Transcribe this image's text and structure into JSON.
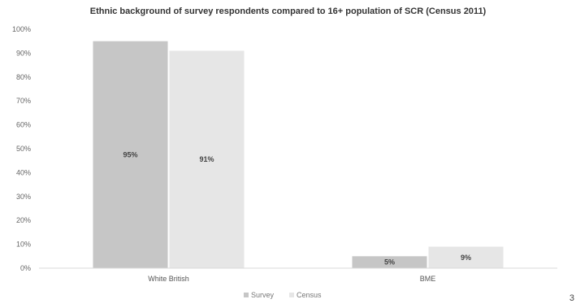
{
  "chart_data": {
    "type": "bar",
    "title": "Ethnic background of survey respondents compared to 16+ population of SCR (Census 2011)",
    "categories": [
      "White British",
      "BME"
    ],
    "series": [
      {
        "name": "Survey",
        "values": [
          95,
          5
        ],
        "labels": [
          "95%",
          "5%"
        ],
        "color": "#c6c6c6"
      },
      {
        "name": "Census",
        "values": [
          91,
          9
        ],
        "labels": [
          "91%",
          "9%"
        ],
        "color": "#e6e6e6"
      }
    ],
    "y_ticks": [
      "0%",
      "10%",
      "20%",
      "30%",
      "40%",
      "50%",
      "60%",
      "70%",
      "80%",
      "90%",
      "100%"
    ],
    "ylim": [
      0,
      100
    ],
    "grid": false,
    "legend_position": "bottom"
  },
  "page_number": "3"
}
